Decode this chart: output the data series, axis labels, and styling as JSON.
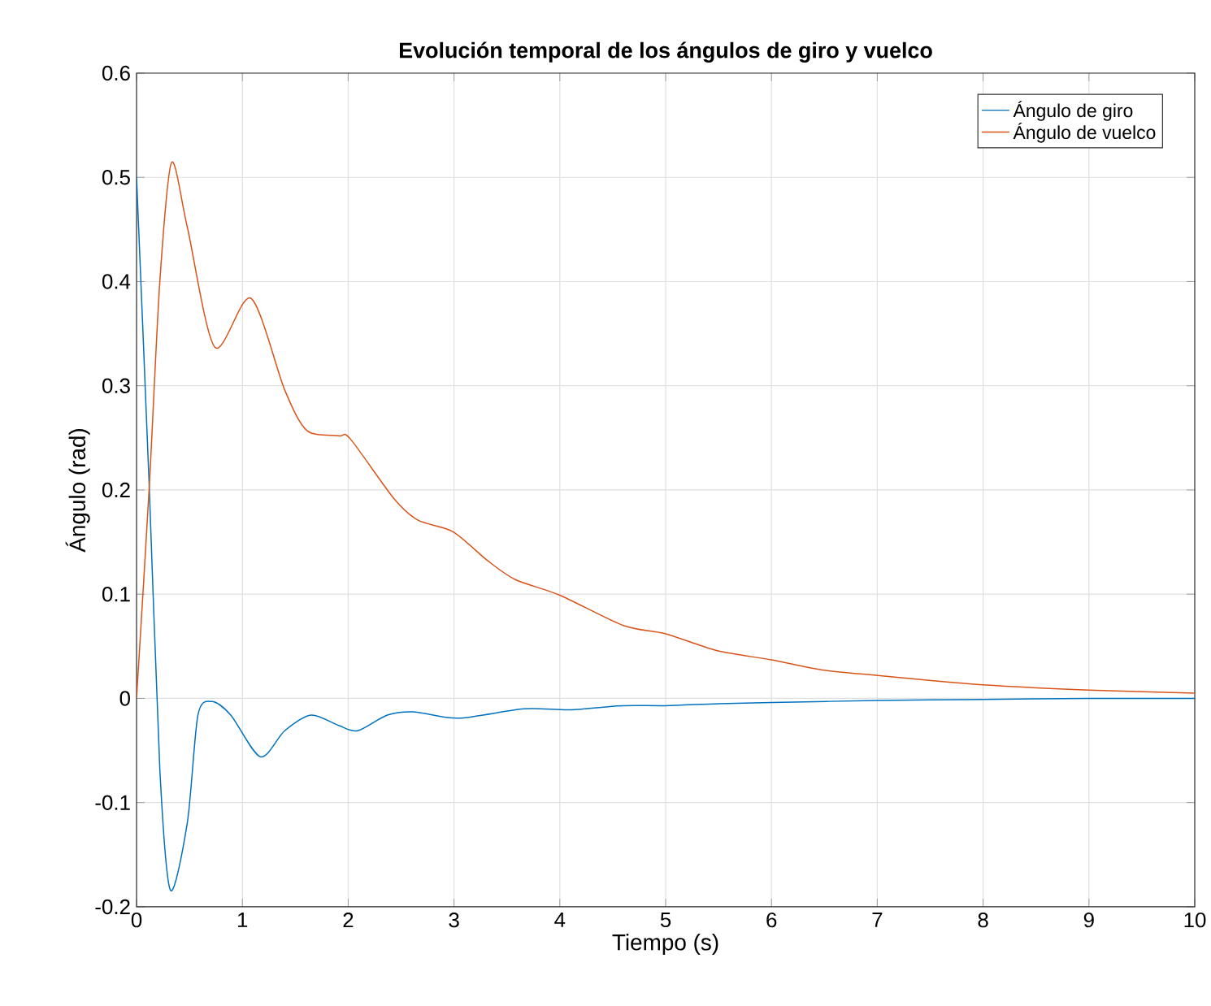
{
  "chart_data": {
    "type": "line",
    "title": "Evolución temporal de los ángulos de giro y vuelco",
    "xlabel": "Tiempo (s)",
    "ylabel": "Ángulo (rad)",
    "xlim": [
      0,
      10
    ],
    "ylim": [
      -0.2,
      0.6
    ],
    "xticks": [
      0,
      1,
      2,
      3,
      4,
      5,
      6,
      7,
      8,
      9,
      10
    ],
    "yticks": [
      -0.2,
      -0.1,
      0,
      0.1,
      0.2,
      0.3,
      0.4,
      0.5,
      0.6
    ],
    "grid": true,
    "legend": "top right",
    "line_style": "solid",
    "marker": "none",
    "series": [
      {
        "name": "Ángulo de giro",
        "color": "#0072bd",
        "x": [
          0,
          0.12,
          0.22,
          0.32,
          0.48,
          0.58,
          0.71,
          0.89,
          1.17,
          1.4,
          1.65,
          1.91,
          2.09,
          2.37,
          2.63,
          3.04,
          3.66,
          4.1,
          4.6,
          5.0,
          5.5,
          6,
          7,
          8,
          9,
          10
        ],
        "values": [
          0.5,
          0.203,
          -0.068,
          -0.184,
          -0.119,
          -0.016,
          -0.003,
          -0.016,
          -0.056,
          -0.031,
          -0.016,
          -0.026,
          -0.031,
          -0.016,
          -0.013,
          -0.019,
          -0.01,
          -0.011,
          -0.007,
          -0.007,
          -0.005,
          -0.004,
          -0.002,
          -0.001,
          0,
          0
        ]
      },
      {
        "name": "Ángulo de vuelco",
        "color": "#d95319",
        "x": [
          0,
          0.12,
          0.22,
          0.33,
          0.48,
          0.74,
          1.08,
          1.4,
          1.61,
          1.91,
          2.02,
          2.43,
          2.66,
          2.99,
          3.32,
          3.58,
          4.0,
          4.6,
          5.0,
          5.48,
          6.0,
          6.5,
          7.0,
          8.0,
          9.0,
          10.0
        ],
        "values": [
          0,
          0.203,
          0.4,
          0.514,
          0.452,
          0.337,
          0.384,
          0.296,
          0.257,
          0.252,
          0.249,
          0.192,
          0.171,
          0.16,
          0.132,
          0.114,
          0.099,
          0.07,
          0.062,
          0.046,
          0.037,
          0.027,
          0.022,
          0.013,
          0.008,
          0.005
        ]
      }
    ]
  }
}
